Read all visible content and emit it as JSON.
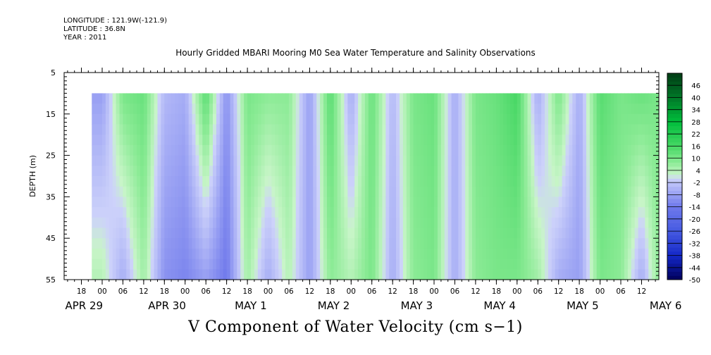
{
  "header": {
    "longitude": "LONGITUDE : 121.9W(-121.9)",
    "latitude": "LATITUDE : 36.8N",
    "year": "YEAR : 2011"
  },
  "chart_data": {
    "type": "heatmap",
    "title": "Hourly Gridded MBARI Mooring M0 Sea Water Temperature and Salinity Observations",
    "variable_title": "V Component of Water Velocity (cm s−1)",
    "ylabel": "DEPTH (m)",
    "ylim": [
      55,
      5
    ],
    "y_ticks": [
      "5",
      "15",
      "25",
      "35",
      "45",
      "55"
    ],
    "xlim_hours": [
      -11,
      161
    ],
    "data_start_hour": -3,
    "data_end_hour": 161,
    "data_depth_range": [
      10,
      55
    ],
    "x_hour_ticks": [
      "18",
      "00",
      "06",
      "12",
      "18",
      "00",
      "06",
      "12",
      "18",
      "00",
      "06",
      "12",
      "18",
      "00",
      "06",
      "12",
      "18",
      "00",
      "06",
      "12",
      "18",
      "00",
      "06",
      "12",
      "18",
      "00",
      "06",
      "12"
    ],
    "x_day_labels": [
      "APR 29",
      "APR 30",
      "MAY  1",
      "MAY  2",
      "MAY  3",
      "MAY  4",
      "MAY  5",
      "MAY  6"
    ],
    "colorbar_levels": [
      "46",
      "40",
      "34",
      "28",
      "22",
      "16",
      "10",
      "4",
      "-2",
      "-8",
      "-14",
      "-20",
      "-26",
      "-32",
      "-38",
      "-44",
      "-50"
    ],
    "colorbar_range": [
      -50,
      52
    ],
    "colors": {
      "strong_positive": "#00c040",
      "weak_positive": "#9eeea4",
      "weak_negative": "#a9b0f6",
      "strong_negative": "#6d77ea"
    },
    "velocity_profiles": [
      {
        "hour": 0,
        "surface": -8,
        "bottom": 4
      },
      {
        "hour": 6,
        "surface": 10,
        "bottom": -6
      },
      {
        "hour": 12,
        "surface": 12,
        "bottom": 6
      },
      {
        "hour": 18,
        "surface": -4,
        "bottom": -10
      },
      {
        "hour": 24,
        "surface": -6,
        "bottom": -12
      },
      {
        "hour": 30,
        "surface": 14,
        "bottom": -8
      },
      {
        "hour": 36,
        "surface": -10,
        "bottom": -14
      },
      {
        "hour": 42,
        "surface": 10,
        "bottom": 6
      },
      {
        "hour": 48,
        "surface": 8,
        "bottom": -6
      },
      {
        "hour": 54,
        "surface": 8,
        "bottom": 4
      },
      {
        "hour": 60,
        "surface": -8,
        "bottom": -8
      },
      {
        "hour": 66,
        "surface": 14,
        "bottom": 8
      },
      {
        "hour": 72,
        "surface": -6,
        "bottom": 4
      },
      {
        "hour": 78,
        "surface": 12,
        "bottom": 10
      },
      {
        "hour": 84,
        "surface": -4,
        "bottom": -6
      },
      {
        "hour": 90,
        "surface": 10,
        "bottom": 8
      },
      {
        "hour": 96,
        "surface": 12,
        "bottom": 10
      },
      {
        "hour": 102,
        "surface": -6,
        "bottom": -6
      },
      {
        "hour": 108,
        "surface": 10,
        "bottom": 8
      },
      {
        "hour": 114,
        "surface": 12,
        "bottom": 10
      },
      {
        "hour": 120,
        "surface": 16,
        "bottom": 10
      },
      {
        "hour": 126,
        "surface": -6,
        "bottom": 6
      },
      {
        "hour": 132,
        "surface": 10,
        "bottom": -6
      },
      {
        "hour": 138,
        "surface": -6,
        "bottom": -8
      },
      {
        "hour": 144,
        "surface": 14,
        "bottom": 10
      },
      {
        "hour": 150,
        "surface": 10,
        "bottom": 8
      },
      {
        "hour": 156,
        "surface": 12,
        "bottom": -6
      },
      {
        "hour": 161,
        "surface": 10,
        "bottom": 8
      }
    ]
  }
}
